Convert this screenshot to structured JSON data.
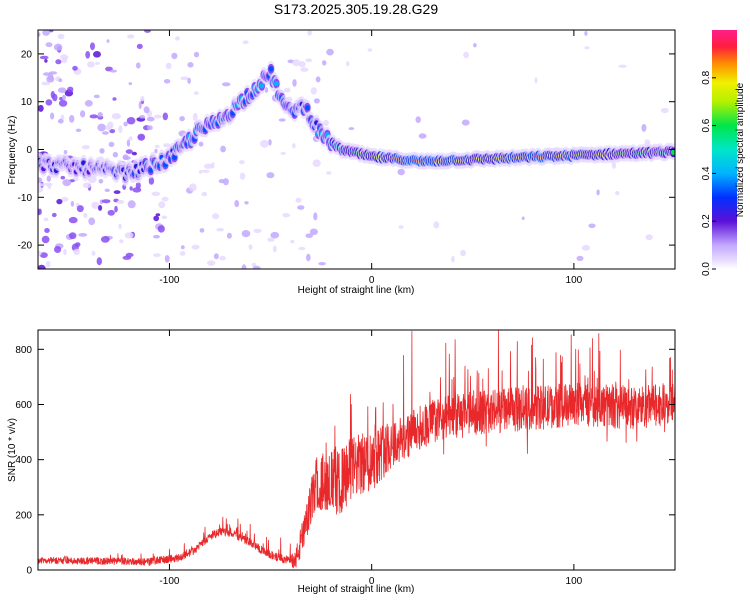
{
  "title": "S173.2025.305.19.28.G29",
  "colors": {
    "snr_line": "#e8282a",
    "palette": [
      "#ffffff",
      "#e6d9ff",
      "#c2a8ff",
      "#8a4df2",
      "#5b10d8",
      "#2a1ad8",
      "#0050ff",
      "#00b4ff",
      "#00e6c8",
      "#00e64a",
      "#8cf000",
      "#f0f000",
      "#ffb400",
      "#ff5a00",
      "#ff1e3c",
      "#ff1e8c"
    ]
  },
  "chart_data": [
    {
      "id": "spectrogram",
      "type": "heatmap",
      "title": "S173.2025.305.19.28.G29",
      "xlabel": "Height of straight line (km)",
      "ylabel": "Frequency (Hz)",
      "xlim": [
        -165,
        150
      ],
      "ylim": [
        -25,
        25
      ],
      "xticks": [
        -100,
        0,
        100
      ],
      "yticks": [
        -20,
        -10,
        0,
        10,
        20
      ],
      "xtick_labels": [
        "-100",
        "0",
        "100"
      ],
      "ytick_labels": [
        "-20",
        "-10",
        "0",
        "10",
        "20"
      ],
      "colorbar": {
        "label": "Normalized spectral amplitude",
        "range": [
          0.0,
          1.0
        ],
        "ticks": [
          0.0,
          0.2,
          0.4,
          0.6,
          0.8
        ],
        "tick_labels": [
          "0.0",
          "0.2",
          "0.4",
          "0.6",
          "0.8"
        ]
      },
      "ridge": [
        {
          "x": -165,
          "y": -3,
          "amp": 0.35
        },
        {
          "x": -140,
          "y": -4,
          "amp": 0.35
        },
        {
          "x": -120,
          "y": -5,
          "amp": 0.4
        },
        {
          "x": -100,
          "y": -2,
          "amp": 0.45
        },
        {
          "x": -85,
          "y": 4,
          "amp": 0.5
        },
        {
          "x": -75,
          "y": 6,
          "amp": 0.45
        },
        {
          "x": -62,
          "y": 11,
          "amp": 0.5
        },
        {
          "x": -50,
          "y": 16,
          "amp": 0.5
        },
        {
          "x": -42,
          "y": 8,
          "amp": 0.45
        },
        {
          "x": -33,
          "y": 9,
          "amp": 0.4
        },
        {
          "x": -25,
          "y": 3,
          "amp": 0.5
        },
        {
          "x": -15,
          "y": 0,
          "amp": 0.6
        },
        {
          "x": 0,
          "y": -1.5,
          "amp": 0.8
        },
        {
          "x": 25,
          "y": -2.5,
          "amp": 0.95
        },
        {
          "x": 55,
          "y": -2,
          "amp": 0.8
        },
        {
          "x": 85,
          "y": -1.5,
          "amp": 0.95
        },
        {
          "x": 115,
          "y": -1,
          "amp": 0.8
        },
        {
          "x": 150,
          "y": -0.5,
          "amp": 0.6
        }
      ]
    },
    {
      "id": "snr",
      "type": "line",
      "xlabel": "Height of straight line (km)",
      "ylabel": "SNR (10 * v/v)",
      "xlim": [
        -165,
        150
      ],
      "ylim": [
        0,
        870
      ],
      "xticks": [
        -100,
        0,
        100
      ],
      "yticks": [
        0,
        200,
        400,
        600,
        800
      ],
      "xtick_labels": [
        "-100",
        "0",
        "100"
      ],
      "ytick_labels": [
        "0",
        "200",
        "400",
        "600",
        "800"
      ],
      "trend": {
        "x": [
          -165,
          -110,
          -95,
          -88,
          -82,
          -75,
          -68,
          -60,
          -52,
          -44,
          -38,
          -34,
          -28,
          -22,
          -16,
          -10,
          -2,
          5,
          10,
          15,
          20,
          30,
          50,
          70,
          100,
          130,
          150
        ],
        "y": [
          35,
          30,
          45,
          70,
          110,
          140,
          130,
          100,
          60,
          40,
          30,
          120,
          300,
          330,
          310,
          370,
          390,
          430,
          460,
          470,
          500,
          540,
          570,
          580,
          600,
          590,
          600
        ]
      },
      "noise_amp": {
        "x": [
          -165,
          -40,
          -35,
          -20,
          0,
          20,
          150
        ],
        "y": [
          12,
          15,
          60,
          120,
          110,
          80,
          80
        ]
      },
      "spike_height": {
        "x": [
          -165,
          -30,
          -10,
          0,
          20,
          50,
          100,
          150
        ],
        "y": [
          0,
          80,
          200,
          280,
          300,
          220,
          220,
          200
        ]
      },
      "samples": 2400
    }
  ]
}
